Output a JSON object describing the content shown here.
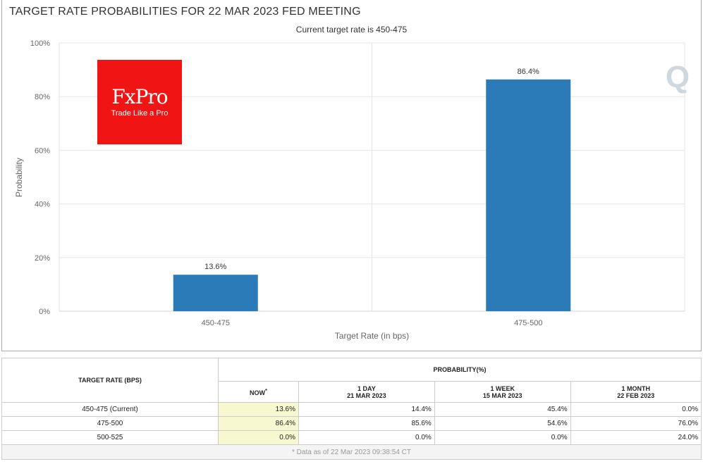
{
  "title": "TARGET RATE PROBABILITIES FOR 22 MAR 2023 FED MEETING",
  "subtitle": "Current target rate is 450-475",
  "logo": {
    "brand": "FxPro",
    "tagline": "Trade Like a Pro"
  },
  "watermark": "Q",
  "chart_data": {
    "type": "bar",
    "title": "TARGET RATE PROBABILITIES FOR 22 MAR 2023 FED MEETING",
    "subtitle": "Current target rate is 450-475",
    "xlabel": "Target Rate (in bps)",
    "ylabel": "Probability",
    "categories": [
      "450-475",
      "475-500"
    ],
    "values": [
      13.6,
      86.4
    ],
    "data_labels": [
      "13.6%",
      "86.4%"
    ],
    "ylim": [
      0,
      100
    ],
    "yticks": [
      "0%",
      "20%",
      "40%",
      "60%",
      "80%",
      "100%"
    ],
    "color": "#2b7bb9",
    "grid": true
  },
  "table": {
    "col_header": "TARGET RATE (BPS)",
    "group_header": "PROBABILITY(%)",
    "columns": [
      {
        "l1": "NOW",
        "l2": "",
        "sup": "*"
      },
      {
        "l1": "1 DAY",
        "l2": "21 MAR 2023"
      },
      {
        "l1": "1 WEEK",
        "l2": "15 MAR 2023"
      },
      {
        "l1": "1 MONTH",
        "l2": "22 FEB 2023"
      }
    ],
    "rows": [
      {
        "rate": "450-475 (Current)",
        "v": [
          "13.6%",
          "14.4%",
          "45.4%",
          "0.0%"
        ]
      },
      {
        "rate": "475-500",
        "v": [
          "86.4%",
          "85.6%",
          "54.6%",
          "76.0%"
        ]
      },
      {
        "rate": "500-525",
        "v": [
          "0.0%",
          "0.0%",
          "0.0%",
          "24.0%"
        ]
      }
    ],
    "footnote": "* Data as of 22 Mar 2023 09:38:54 CT"
  }
}
